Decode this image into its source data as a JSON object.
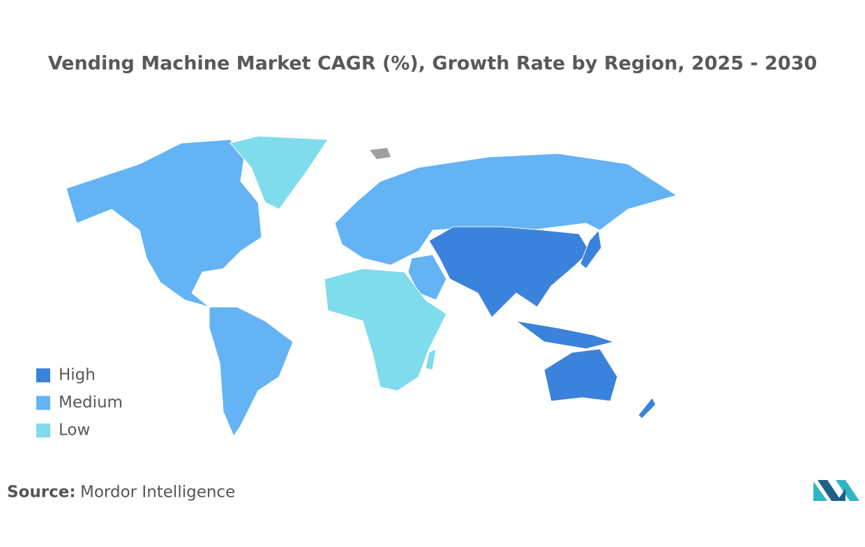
{
  "header": {
    "title": "Vending Machine Market CAGR (%), Growth Rate by Region, 2025 - 2030"
  },
  "legend": [
    {
      "label": "High",
      "color": "#3b82dc"
    },
    {
      "label": "Medium",
      "color": "#63b3f5"
    },
    {
      "label": "Low",
      "color": "#7fdced"
    }
  ],
  "footer": {
    "source_label": "Source:",
    "source": "Mordor Intelligence"
  }
}
